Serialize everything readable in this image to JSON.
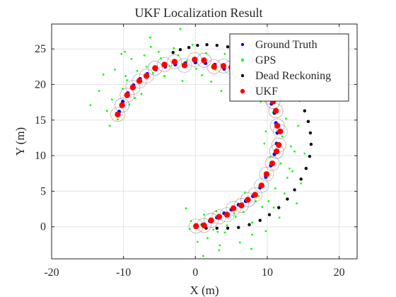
{
  "chart_data": {
    "type": "scatter",
    "title": "UKF Localization Result",
    "xlabel": "X (m)",
    "ylabel": "Y (m)",
    "xlim": [
      -20,
      22.5
    ],
    "ylim": [
      -4.5,
      28.5
    ],
    "xticks": [
      -20,
      -10,
      0,
      10,
      20
    ],
    "yticks": [
      0,
      5,
      10,
      15,
      20,
      25
    ],
    "grid": true,
    "legend_position": "top-right",
    "colors": {
      "ground_truth": "#0000ff",
      "gps": "#00ff00",
      "dead_reckoning": "#000000",
      "ukf": "#ff0000"
    },
    "series": [
      {
        "name": "Ground Truth",
        "marker": "dot",
        "x": [
          0,
          1,
          2,
          3,
          4,
          5,
          6,
          7,
          8,
          9,
          9.8,
          10.5,
          11,
          11.3,
          11.4,
          11.2,
          11,
          10.6,
          10.3,
          10,
          9.4,
          8.6,
          7.5,
          6.4,
          5.2,
          4,
          2.7,
          1.4,
          0,
          -1.4,
          -2.8,
          -4.2,
          -5.5,
          -6.7,
          -7.7,
          -8.6,
          -9.4,
          -10.1,
          -10.6
        ],
        "y": [
          0,
          0.3,
          0.8,
          1.3,
          1.9,
          2.4,
          3.1,
          3.6,
          4.3,
          5.5,
          7,
          8.6,
          10.2,
          11.7,
          13.2,
          14.6,
          16,
          17.3,
          18.5,
          19.5,
          20.3,
          21,
          21.3,
          21.5,
          21.8,
          22.2,
          22.8,
          23,
          23.1,
          23,
          22.8,
          22.5,
          22.1,
          21.5,
          20.8,
          19.9,
          18.8,
          17.6,
          16.2
        ]
      },
      {
        "name": "GPS",
        "marker": "dot",
        "x": [
          -10.8,
          -9.2,
          -11.6,
          -10.1,
          -8.4,
          -12.3,
          -9.7,
          -7.6,
          -11.2,
          -8.9,
          -6.8,
          -10.3,
          -7.1,
          -5.9,
          -9.5,
          -4.8,
          -6.2,
          -8.1,
          -3.6,
          -5.1,
          -2.4,
          -4.3,
          -1.2,
          -3,
          0.1,
          -1.8,
          1.5,
          -0.4,
          2.8,
          0.9,
          4.1,
          2.2,
          5.3,
          3.6,
          6.6,
          8.9,
          7.4,
          10.2,
          9.1,
          11.4,
          10.8,
          12.6,
          9.8,
          12.1,
          13.3,
          10.4,
          11.9,
          13.8,
          9.6,
          12.8,
          11.1,
          13.5,
          10.2,
          12.4,
          9.3,
          11.7,
          8.4,
          10.9,
          7.9,
          9.8,
          6.7,
          8.8,
          5.6,
          7.9,
          4.4,
          6.6,
          3.1,
          5.4,
          2,
          4.1,
          0.8,
          2.9,
          -0.6,
          1.7,
          1.2,
          -1.3,
          0.3,
          2.5,
          -0.8,
          3.4,
          6.2,
          7.8,
          14.3,
          15.2,
          14.7,
          -13.4,
          -14.6,
          -12.8,
          -6.3,
          -2.1,
          8.2,
          12.3,
          -7.5,
          -11.9,
          3.3,
          6.9,
          13.1,
          14.1,
          -9.8,
          1.1
        ],
        "y": [
          15.1,
          17.2,
          17.9,
          19.4,
          18.1,
          16.3,
          21.2,
          20.4,
          22.1,
          23.6,
          22.5,
          24.3,
          24.1,
          21.6,
          20.6,
          23.7,
          25.3,
          21.9,
          22.6,
          24.6,
          24.1,
          21.2,
          23.3,
          25.1,
          22.2,
          20.5,
          24.4,
          25.6,
          22.1,
          21.3,
          24.3,
          20.4,
          22.9,
          19.1,
          21.6,
          22.1,
          20.2,
          19.7,
          17.6,
          18.4,
          16.1,
          15.2,
          13.4,
          12.7,
          11.3,
          9.8,
          8.9,
          10.6,
          11.7,
          6.9,
          5.4,
          7.8,
          3.6,
          4.7,
          2.8,
          1.3,
          3.6,
          2.7,
          0.6,
          -0.6,
          2.1,
          4.3,
          1.4,
          -1.1,
          0.2,
          3.3,
          -0.7,
          1.9,
          1.1,
          -0.8,
          0.3,
          2.2,
          0.8,
          -1.6,
          1.7,
          2.6,
          -2.1,
          -0.4,
          -0.3,
          -2.6,
          -2.2,
          -3.1,
          14.2,
          10.3,
          6.1,
          19.1,
          17.1,
          21.4,
          26.6,
          27.8,
          23.4,
          20.6,
          18.7,
          14.2,
          -3.3,
          4.8,
          8.2,
          3.3,
          24.6,
          -4.1
        ]
      },
      {
        "name": "Dead Reckoning",
        "marker": "dot",
        "x": [
          0,
          1.5,
          3,
          4.5,
          6,
          7.5,
          9,
          10.3,
          11.6,
          12.8,
          13.8,
          14.7,
          15.4,
          15.9,
          16.1,
          16,
          15.7,
          15.2,
          14.5,
          13.6,
          12.5,
          11.3,
          10,
          8.7,
          7.3,
          5.9,
          4.5,
          3,
          1.6,
          0.3,
          -0.9,
          -2.1,
          -3.1
        ],
        "y": [
          -0.1,
          -0.2,
          -0.2,
          -0.2,
          -0.1,
          0.3,
          0.9,
          1.7,
          2.7,
          3.9,
          5.2,
          6.7,
          8.2,
          9.9,
          11.6,
          13.2,
          14.8,
          16.3,
          17.8,
          19.1,
          20.4,
          21.5,
          22.5,
          23.4,
          24.2,
          24.8,
          25.3,
          25.5,
          25.6,
          25.5,
          25.2,
          24.9,
          24.5
        ]
      },
      {
        "name": "UKF",
        "marker": "dot",
        "x": [
          0.1,
          1.2,
          2.2,
          3.3,
          4.4,
          5.3,
          6.4,
          7.3,
          8.3,
          9.2,
          9.9,
          10.7,
          11.3,
          11.6,
          11.8,
          11.4,
          11.2,
          10.8,
          10.4,
          10,
          9.3,
          8.3,
          7.2,
          6.1,
          5,
          3.9,
          2.6,
          1.2,
          -0.1,
          -1.5,
          -2.9,
          -4.3,
          -5.6,
          -6.8,
          -7.8,
          -8.7,
          -9.5,
          -10.2,
          -10.8
        ],
        "y": [
          0.1,
          0.2,
          0.9,
          1.4,
          1.7,
          2.6,
          3,
          3.8,
          4.5,
          5.8,
          7.4,
          8.9,
          10.6,
          11.5,
          13.4,
          14.2,
          16.3,
          17.6,
          18.2,
          19.8,
          20.6,
          21.3,
          21.1,
          21.8,
          22.4,
          22.6,
          22.5,
          23.4,
          23.5,
          22.7,
          23.2,
          22.8,
          22.3,
          21.2,
          20.5,
          19.6,
          18.5,
          17.1,
          15.8
        ]
      }
    ]
  }
}
